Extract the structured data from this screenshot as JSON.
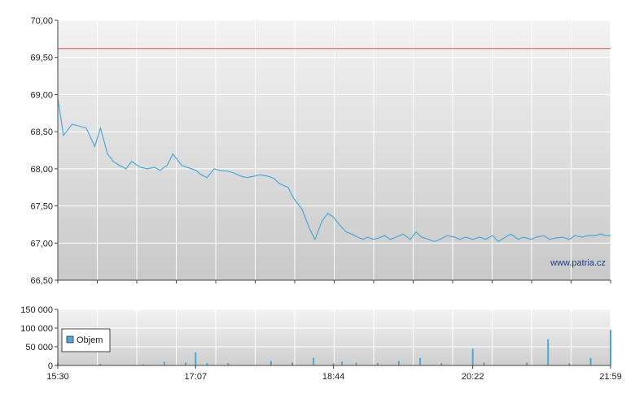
{
  "chart_data": [
    {
      "type": "line",
      "title": "",
      "xlabel": "",
      "ylabel": "",
      "ylim": [
        66.5,
        70.0
      ],
      "y_ticks": [
        "70,00",
        "69,50",
        "69,00",
        "68,50",
        "68,00",
        "67,50",
        "67,00",
        "66,50"
      ],
      "x_tick_labels": [
        "15:30",
        "17:07",
        "18:44",
        "20:22",
        "21:59"
      ],
      "x_range": [
        "15:30",
        "21:59"
      ],
      "reference_line": {
        "value": 69.62,
        "color": "#e05050"
      },
      "series": [
        {
          "color": "#4aa8d8",
          "x": [
            "15:30",
            "15:34",
            "15:40",
            "15:46",
            "15:50",
            "15:56",
            "16:00",
            "16:05",
            "16:09",
            "16:13",
            "16:18",
            "16:22",
            "16:28",
            "16:33",
            "16:38",
            "16:42",
            "16:47",
            "16:51",
            "16:57",
            "17:01",
            "17:07",
            "17:11",
            "17:15",
            "17:20",
            "17:24",
            "17:29",
            "17:33",
            "17:39",
            "17:43",
            "17:48",
            "17:52",
            "17:58",
            "18:02",
            "18:06",
            "18:12",
            "18:16",
            "18:22",
            "18:27",
            "18:31",
            "18:36",
            "18:40",
            "18:44",
            "18:48",
            "18:53",
            "18:57",
            "19:01",
            "19:05",
            "19:08",
            "19:12",
            "19:16",
            "19:20",
            "19:24",
            "19:28",
            "19:33",
            "19:38",
            "19:42",
            "19:46",
            "19:51",
            "19:55",
            "20:00",
            "20:04",
            "20:09",
            "20:13",
            "20:17",
            "20:22",
            "20:27",
            "20:31",
            "20:36",
            "20:40",
            "20:45",
            "20:49",
            "20:54",
            "20:58",
            "21:03",
            "21:07",
            "21:12",
            "21:16",
            "21:21",
            "21:25",
            "21:30",
            "21:34",
            "21:39",
            "21:43",
            "21:48",
            "21:52",
            "21:56",
            "21:59"
          ],
          "y": [
            68.95,
            68.45,
            68.6,
            68.57,
            68.55,
            68.3,
            68.55,
            68.2,
            68.1,
            68.05,
            68.0,
            68.1,
            68.02,
            68.0,
            68.02,
            67.98,
            68.05,
            68.2,
            68.05,
            68.02,
            67.98,
            67.92,
            67.88,
            68.0,
            67.98,
            67.97,
            67.95,
            67.9,
            67.88,
            67.9,
            67.92,
            67.9,
            67.87,
            67.8,
            67.75,
            67.6,
            67.45,
            67.2,
            67.05,
            67.3,
            67.4,
            67.35,
            67.25,
            67.15,
            67.12,
            67.08,
            67.05,
            67.08,
            67.05,
            67.07,
            67.1,
            67.05,
            67.08,
            67.12,
            67.05,
            67.15,
            67.08,
            67.05,
            67.02,
            67.06,
            67.1,
            67.08,
            67.05,
            67.08,
            67.05,
            67.08,
            67.05,
            67.1,
            67.02,
            67.08,
            67.12,
            67.05,
            67.08,
            67.05,
            67.08,
            67.1,
            67.05,
            67.07,
            67.08,
            67.05,
            67.1,
            67.08,
            67.1,
            67.1,
            67.12,
            67.1,
            67.1
          ]
        }
      ],
      "annotation": "www.patria.cz",
      "grid": true
    },
    {
      "type": "bar",
      "title": "",
      "ylim": [
        0,
        150000
      ],
      "y_ticks": [
        "150 000",
        "100 000",
        "50 000",
        "0"
      ],
      "x_tick_labels": [
        "15:30",
        "17:07",
        "18:44",
        "20:22",
        "21:59"
      ],
      "legend": {
        "label": "Objem",
        "position": "top-left",
        "color": "#4aa8d8"
      },
      "series": [
        {
          "name": "Objem",
          "color": "#4aa8d8",
          "x": [
            "15:30",
            "16:00",
            "16:30",
            "16:45",
            "17:00",
            "17:07",
            "17:15",
            "17:30",
            "18:00",
            "18:15",
            "18:30",
            "18:44",
            "18:50",
            "19:00",
            "19:15",
            "19:30",
            "19:45",
            "20:00",
            "20:22",
            "20:30",
            "21:00",
            "21:15",
            "21:30",
            "21:45",
            "21:59"
          ],
          "values": [
            6000,
            4000,
            3000,
            10000,
            8000,
            35000,
            6000,
            6000,
            12000,
            8000,
            20000,
            6000,
            10000,
            8000,
            6000,
            12000,
            20000,
            6000,
            45000,
            8000,
            8000,
            70000,
            6000,
            20000,
            95000
          ]
        }
      ],
      "grid": true
    }
  ]
}
